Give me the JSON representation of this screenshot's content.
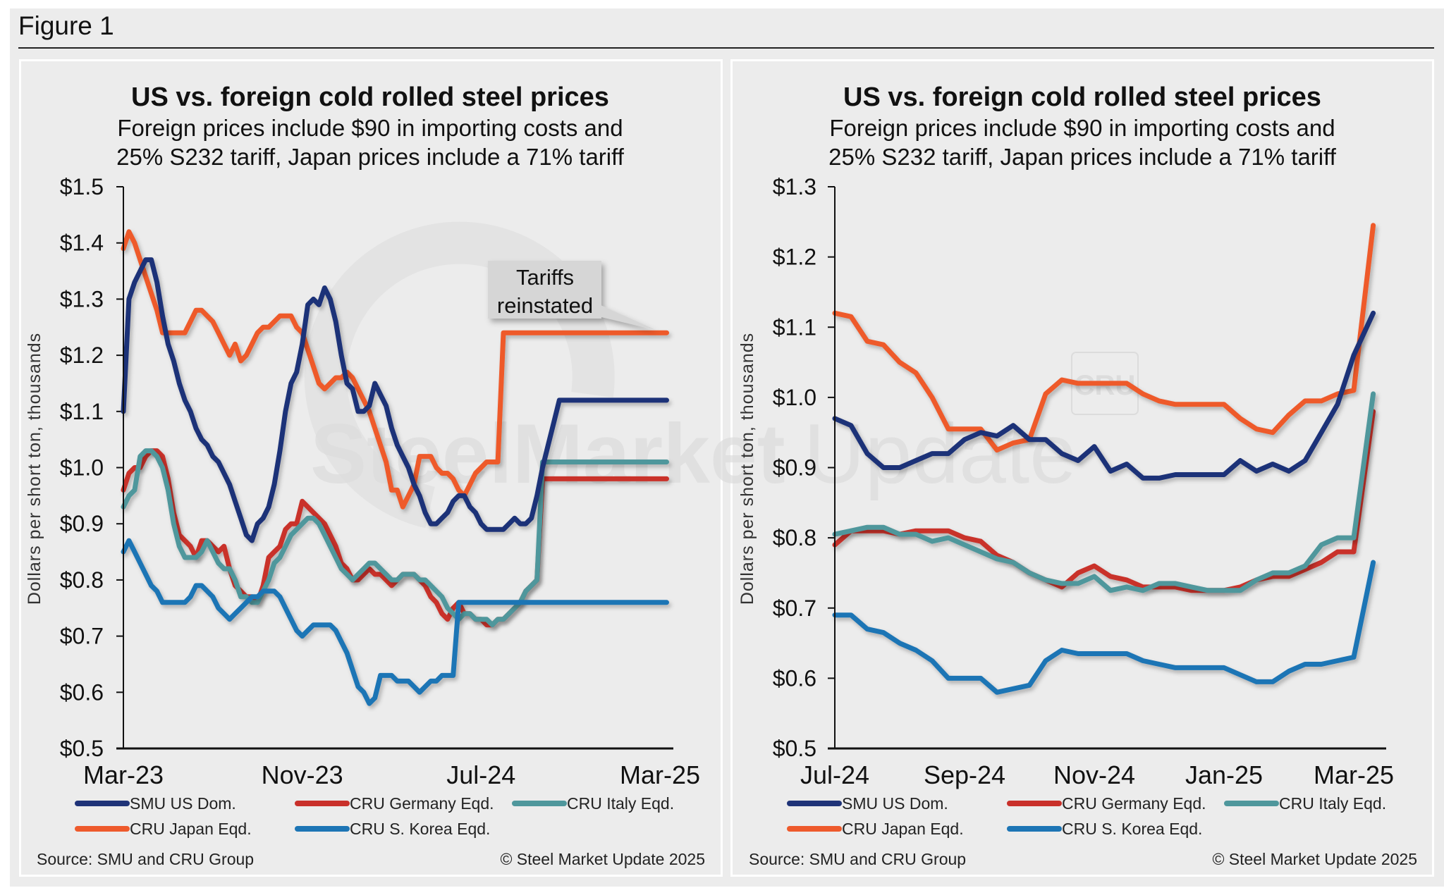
{
  "figure": {
    "title": "Figure 1"
  },
  "chart_data": [
    {
      "type": "line",
      "title": "US vs. foreign cold rolled steel prices",
      "subtitle_line1": "Foreign prices include $90 in importing costs and",
      "subtitle_line2": "25% S232 tariff, Japan prices include a 71% tariff",
      "xlabel": "",
      "ylabel": "Dollars per short ton, thousands",
      "ylim": [
        0.5,
        1.5
      ],
      "yticks": [
        "$0.5",
        "$0.6",
        "$0.7",
        "$0.8",
        "$0.9",
        "$1.0",
        "$1.1",
        "$1.2",
        "$1.3",
        "$1.4",
        "$1.5"
      ],
      "xticks": [
        "Mar-23",
        "Nov-23",
        "Jul-24",
        "Mar-25"
      ],
      "x_units": "months since Mar-23",
      "xlim": [
        0,
        24.6
      ],
      "annotation": {
        "line1": "Tariffs",
        "line2": "reinstated"
      },
      "source": "Source: SMU and CRU Group",
      "copyright": "© Steel Market Update 2025",
      "grid": false,
      "legend_position": "bottom",
      "x": [
        0,
        0.25,
        0.5,
        0.75,
        1,
        1.25,
        1.5,
        1.75,
        2,
        2.25,
        2.5,
        2.75,
        3,
        3.25,
        3.5,
        3.75,
        4,
        4.25,
        4.5,
        4.75,
        5,
        5.25,
        5.5,
        5.75,
        6,
        6.25,
        6.5,
        6.75,
        7,
        7.25,
        7.5,
        7.75,
        8,
        8.25,
        8.5,
        8.75,
        9,
        9.25,
        9.5,
        9.75,
        10,
        10.25,
        10.5,
        10.75,
        11,
        11.25,
        11.5,
        11.75,
        12,
        12.25,
        12.5,
        12.75,
        13,
        13.25,
        13.5,
        13.75,
        14,
        14.25,
        14.5,
        14.75,
        15,
        15.25,
        15.5,
        15.75,
        16,
        16.25,
        16.5,
        16.75,
        17,
        17.25,
        17.5,
        17.75,
        18,
        18.25,
        18.5,
        18.75,
        19,
        19.25,
        19.5,
        19.75,
        20,
        20.25,
        20.5,
        20.75,
        21,
        21.25,
        21.5,
        21.75,
        22,
        22.25,
        22.5,
        22.75,
        23,
        23.25,
        23.5,
        23.75,
        24,
        24.15,
        24.3
      ],
      "series": [
        {
          "name": "SMU US Dom.",
          "color": "#1f3378",
          "values": [
            1.1,
            1.3,
            1.33,
            1.35,
            1.37,
            1.37,
            1.33,
            1.27,
            1.22,
            1.19,
            1.15,
            1.12,
            1.1,
            1.07,
            1.05,
            1.04,
            1.02,
            1.01,
            0.99,
            0.97,
            0.94,
            0.91,
            0.88,
            0.87,
            0.9,
            0.91,
            0.93,
            0.97,
            1.03,
            1.1,
            1.15,
            1.17,
            1.22,
            1.29,
            1.3,
            1.29,
            1.32,
            1.3,
            1.26,
            1.2,
            1.15,
            1.14,
            1.1,
            1.1,
            1.11,
            1.15,
            1.13,
            1.11,
            1.07,
            1.04,
            1.02,
            1.0,
            0.97,
            0.95,
            0.92,
            0.9,
            0.9,
            0.91,
            0.92,
            0.94,
            0.95,
            0.95,
            0.93,
            0.92,
            0.9,
            0.89,
            0.89,
            0.89,
            0.89,
            0.9,
            0.91,
            0.9,
            0.9,
            0.91,
            0.95,
            1.0,
            1.04,
            1.08,
            1.12,
            1.12,
            1.12,
            1.12,
            1.12,
            1.12,
            1.12,
            1.12,
            1.12,
            1.12,
            1.12,
            1.12,
            1.12,
            1.12,
            1.12,
            1.12,
            1.12,
            1.12,
            1.12,
            1.12,
            1.12,
            1.12
          ]
        },
        {
          "name": "CRU Germany Eqd.",
          "color": "#c9302a",
          "values": [
            0.96,
            0.99,
            1.0,
            1.0,
            1.02,
            1.03,
            1.03,
            1.02,
            0.98,
            0.92,
            0.88,
            0.87,
            0.86,
            0.84,
            0.87,
            0.87,
            0.86,
            0.85,
            0.86,
            0.82,
            0.79,
            0.78,
            0.77,
            0.77,
            0.76,
            0.79,
            0.84,
            0.85,
            0.86,
            0.89,
            0.9,
            0.9,
            0.94,
            0.93,
            0.92,
            0.91,
            0.9,
            0.88,
            0.86,
            0.83,
            0.82,
            0.8,
            0.8,
            0.81,
            0.82,
            0.81,
            0.81,
            0.8,
            0.79,
            0.8,
            0.81,
            0.81,
            0.81,
            0.8,
            0.79,
            0.77,
            0.76,
            0.74,
            0.73,
            0.75,
            0.76,
            0.74,
            0.74,
            0.73,
            0.73,
            0.72,
            0.72,
            0.73,
            0.73,
            0.74,
            0.75,
            0.76,
            0.78,
            0.79,
            0.8,
            0.98,
            0.98,
            0.98,
            0.98,
            0.98,
            0.98,
            0.98,
            0.98,
            0.98,
            0.98,
            0.98,
            0.98,
            0.98,
            0.98,
            0.98,
            0.98,
            0.98,
            0.98,
            0.98,
            0.98,
            0.98,
            0.98,
            0.98,
            0.98,
            0.98
          ]
        },
        {
          "name": "CRU Italy Eqd.",
          "color": "#4f979c",
          "values": [
            0.93,
            0.95,
            0.96,
            1.02,
            1.03,
            1.03,
            1.02,
            1.0,
            0.96,
            0.9,
            0.86,
            0.84,
            0.84,
            0.84,
            0.85,
            0.87,
            0.85,
            0.83,
            0.82,
            0.82,
            0.8,
            0.77,
            0.77,
            0.76,
            0.76,
            0.78,
            0.8,
            0.83,
            0.84,
            0.86,
            0.88,
            0.89,
            0.9,
            0.91,
            0.91,
            0.9,
            0.88,
            0.86,
            0.84,
            0.82,
            0.81,
            0.8,
            0.81,
            0.82,
            0.83,
            0.83,
            0.82,
            0.81,
            0.8,
            0.8,
            0.81,
            0.81,
            0.81,
            0.8,
            0.8,
            0.79,
            0.78,
            0.77,
            0.75,
            0.74,
            0.73,
            0.74,
            0.74,
            0.73,
            0.73,
            0.73,
            0.72,
            0.73,
            0.73,
            0.74,
            0.75,
            0.76,
            0.78,
            0.79,
            0.8,
            1.01,
            1.01,
            1.01,
            1.01,
            1.01,
            1.01,
            1.01,
            1.01,
            1.01,
            1.01,
            1.01,
            1.01,
            1.01,
            1.01,
            1.01,
            1.01,
            1.01,
            1.01,
            1.01,
            1.01,
            1.01,
            1.01,
            1.01,
            1.01,
            1.01
          ]
        },
        {
          "name": "CRU Japan Eqd.",
          "color": "#ee5a2c",
          "values": [
            1.39,
            1.42,
            1.4,
            1.37,
            1.34,
            1.31,
            1.28,
            1.24,
            1.24,
            1.24,
            1.24,
            1.24,
            1.26,
            1.28,
            1.28,
            1.27,
            1.26,
            1.24,
            1.22,
            1.2,
            1.22,
            1.19,
            1.2,
            1.22,
            1.24,
            1.25,
            1.25,
            1.26,
            1.27,
            1.27,
            1.27,
            1.25,
            1.24,
            1.21,
            1.18,
            1.15,
            1.14,
            1.15,
            1.16,
            1.16,
            1.17,
            1.16,
            1.14,
            1.12,
            1.1,
            1.07,
            1.04,
            1.01,
            0.96,
            0.96,
            0.93,
            0.95,
            0.97,
            1.02,
            1.02,
            1.02,
            1.0,
            0.99,
            0.99,
            0.98,
            0.96,
            0.95,
            0.97,
            0.99,
            1.0,
            1.01,
            1.01,
            1.01,
            1.24,
            1.24,
            1.24,
            1.24,
            1.24,
            1.24,
            1.24,
            1.24,
            1.24,
            1.24,
            1.24,
            1.24,
            1.24,
            1.24,
            1.24,
            1.24,
            1.24,
            1.24,
            1.24,
            1.24,
            1.24,
            1.24,
            1.24,
            1.24,
            1.24,
            1.24,
            1.24,
            1.24,
            1.24,
            1.24,
            1.24,
            1.24
          ]
        },
        {
          "name": "CRU S. Korea Eqd.",
          "color": "#1d75b5",
          "values": [
            0.85,
            0.87,
            0.85,
            0.83,
            0.81,
            0.79,
            0.78,
            0.76,
            0.76,
            0.76,
            0.76,
            0.76,
            0.77,
            0.79,
            0.79,
            0.78,
            0.77,
            0.75,
            0.74,
            0.73,
            0.74,
            0.75,
            0.76,
            0.77,
            0.77,
            0.78,
            0.78,
            0.78,
            0.77,
            0.75,
            0.73,
            0.71,
            0.7,
            0.71,
            0.72,
            0.72,
            0.72,
            0.72,
            0.71,
            0.69,
            0.67,
            0.64,
            0.61,
            0.6,
            0.58,
            0.59,
            0.63,
            0.63,
            0.63,
            0.62,
            0.62,
            0.62,
            0.61,
            0.6,
            0.61,
            0.62,
            0.62,
            0.63,
            0.63,
            0.63,
            0.76,
            0.76,
            0.76,
            0.76,
            0.76,
            0.76,
            0.76,
            0.76,
            0.76,
            0.76,
            0.76,
            0.76,
            0.76,
            0.76,
            0.76,
            0.76,
            0.76,
            0.76,
            0.76,
            0.76,
            0.76,
            0.76,
            0.76,
            0.76,
            0.76,
            0.76,
            0.76,
            0.76,
            0.76,
            0.76,
            0.76,
            0.76,
            0.76,
            0.76,
            0.76,
            0.76,
            0.76,
            0.76,
            0.76,
            0.76
          ]
        }
      ]
    },
    {
      "type": "line",
      "title": "US vs. foreign cold rolled steel prices",
      "subtitle_line1": "Foreign prices include $90 in importing costs and",
      "subtitle_line2": "25% S232 tariff, Japan prices include a 71% tariff",
      "xlabel": "",
      "ylabel": "Dollars per short ton, thousands",
      "ylim": [
        0.5,
        1.3
      ],
      "yticks": [
        "$0.5",
        "$0.6",
        "$0.7",
        "$0.8",
        "$0.9",
        "$1.0",
        "$1.1",
        "$1.2",
        "$1.3"
      ],
      "xticks": [
        "Jul-24",
        "Sep-24",
        "Nov-24",
        "Jan-25",
        "Mar-25"
      ],
      "x_units": "months since Jul-24",
      "xlim": [
        0,
        8.5
      ],
      "source": "Source: SMU and CRU Group",
      "copyright": "© Steel Market Update 2025",
      "grid": false,
      "legend_position": "bottom",
      "x": [
        0,
        0.25,
        0.5,
        0.75,
        1,
        1.25,
        1.5,
        1.75,
        2,
        2.25,
        2.5,
        2.75,
        3,
        3.25,
        3.5,
        3.75,
        4,
        4.25,
        4.5,
        4.75,
        5,
        5.25,
        5.5,
        5.75,
        6,
        6.25,
        6.5,
        6.75,
        7,
        7.25,
        7.5,
        7.75,
        8,
        8.3
      ],
      "series": [
        {
          "name": "SMU US Dom.",
          "color": "#1f3378",
          "values": [
            0.97,
            0.96,
            0.92,
            0.9,
            0.9,
            0.91,
            0.92,
            0.92,
            0.94,
            0.95,
            0.945,
            0.96,
            0.94,
            0.94,
            0.92,
            0.91,
            0.93,
            0.895,
            0.905,
            0.885,
            0.885,
            0.89,
            0.89,
            0.89,
            0.89,
            0.91,
            0.895,
            0.905,
            0.895,
            0.91,
            0.95,
            0.99,
            1.06,
            1.12
          ]
        },
        {
          "name": "CRU Germany Eqd.",
          "color": "#c9302a",
          "values": [
            0.79,
            0.81,
            0.81,
            0.81,
            0.805,
            0.81,
            0.81,
            0.81,
            0.8,
            0.795,
            0.775,
            0.765,
            0.75,
            0.74,
            0.73,
            0.75,
            0.76,
            0.745,
            0.74,
            0.73,
            0.73,
            0.73,
            0.725,
            0.725,
            0.725,
            0.73,
            0.74,
            0.745,
            0.745,
            0.755,
            0.765,
            0.78,
            0.78,
            0.98
          ]
        },
        {
          "name": "CRU Italy Eqd.",
          "color": "#4f979c",
          "values": [
            0.805,
            0.81,
            0.815,
            0.815,
            0.805,
            0.805,
            0.795,
            0.8,
            0.79,
            0.78,
            0.77,
            0.765,
            0.75,
            0.74,
            0.735,
            0.735,
            0.745,
            0.725,
            0.73,
            0.725,
            0.735,
            0.735,
            0.73,
            0.725,
            0.725,
            0.725,
            0.74,
            0.75,
            0.75,
            0.76,
            0.79,
            0.8,
            0.8,
            1.005
          ]
        },
        {
          "name": "CRU Japan Eqd.",
          "color": "#ee5a2c",
          "values": [
            1.12,
            1.115,
            1.08,
            1.075,
            1.05,
            1.035,
            1.0,
            0.955,
            0.955,
            0.955,
            0.925,
            0.935,
            0.94,
            1.005,
            1.025,
            1.02,
            1.02,
            1.02,
            1.02,
            1.005,
            0.995,
            0.99,
            0.99,
            0.99,
            0.99,
            0.97,
            0.955,
            0.95,
            0.975,
            0.995,
            0.995,
            1.005,
            1.01,
            1.245
          ]
        },
        {
          "name": "CRU S. Korea Eqd.",
          "color": "#1d75b5",
          "values": [
            0.69,
            0.69,
            0.67,
            0.665,
            0.65,
            0.64,
            0.625,
            0.6,
            0.6,
            0.6,
            0.58,
            0.585,
            0.59,
            0.625,
            0.64,
            0.635,
            0.635,
            0.635,
            0.635,
            0.625,
            0.62,
            0.615,
            0.615,
            0.615,
            0.615,
            0.605,
            0.595,
            0.595,
            0.61,
            0.62,
            0.62,
            0.625,
            0.63,
            0.765
          ]
        }
      ]
    }
  ],
  "legend": {
    "items": [
      "SMU US Dom.",
      "CRU Germany Eqd.",
      "CRU Italy Eqd.",
      "CRU Japan Eqd.",
      "CRU S. Korea Eqd."
    ]
  },
  "watermark": {
    "bold": "SteelMarket",
    "light": "Update",
    "cru": "CRU"
  }
}
